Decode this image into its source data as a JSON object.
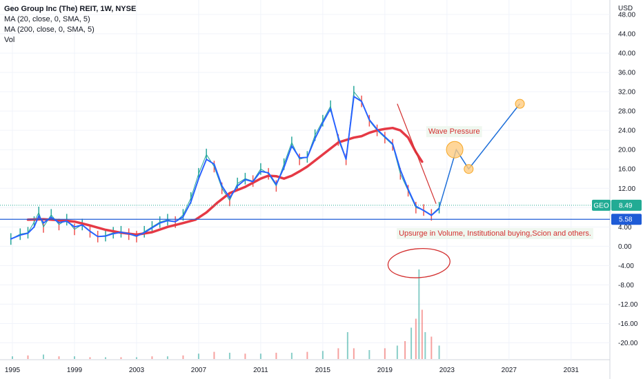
{
  "legend": {
    "title": "Geo Group Inc (The) REIT, 1W, NYSE",
    "lines": [
      "MA (20, close, 0, SMA, 5)",
      "MA (200, close, 0, SMA, 5)",
      "Vol"
    ]
  },
  "chart_data": {
    "type": "line",
    "currency_label": "USD",
    "x_ticks": [
      "1995",
      "1999",
      "2003",
      "2007",
      "2011",
      "2015",
      "2019",
      "2023",
      "2027",
      "2031"
    ],
    "x_tick_values": [
      1995,
      1999,
      2003,
      2007,
      2011,
      2015,
      2019,
      2023,
      2027,
      2031
    ],
    "y_ticks": [
      "48.00",
      "44.00",
      "40.00",
      "36.00",
      "32.00",
      "28.00",
      "24.00",
      "20.00",
      "16.00",
      "12.00",
      "8.00",
      "4.00",
      "0.00",
      "-4.00",
      "-8.00",
      "-12.00",
      "-16.00",
      "-20.00"
    ],
    "y_tick_values": [
      48,
      44,
      40,
      36,
      32,
      28,
      24,
      20,
      16,
      12,
      8,
      4,
      0,
      -4,
      -8,
      -12,
      -16,
      -20
    ],
    "xlim": [
      1994.2,
      2033.5
    ],
    "ylim": [
      -23.5,
      51
    ],
    "grid": true,
    "colors": {
      "price": "#26a69a",
      "price_down": "#ef5350",
      "ma20": "#2962ff",
      "ma200": "#e53945",
      "projection": "#1e6fd9",
      "support": "#1e5bd6",
      "annotation": "#d32f2f",
      "circle_fill": "#ffcc80",
      "circle_stroke": "#f5a623",
      "geo_badge": "#22ab94",
      "support_badge": "#1e5bd6"
    },
    "series": [
      {
        "role": "price",
        "x": [
          1994.9,
          1995.5,
          1996.0,
          1996.4,
          1996.7,
          1997.0,
          1997.5,
          1998.0,
          1998.5,
          1999.0,
          1999.5,
          2000.0,
          2000.5,
          2001.0,
          2001.5,
          2002.0,
          2002.5,
          2003.0,
          2003.5,
          2004.0,
          2004.5,
          2005.0,
          2005.5,
          2006.0,
          2006.5,
          2007.0,
          2007.5,
          2008.0,
          2008.5,
          2009.0,
          2009.5,
          2010.0,
          2010.5,
          2011.0,
          2011.5,
          2012.0,
          2012.5,
          2013.0,
          2013.5,
          2014.0,
          2014.5,
          2015.0,
          2015.5,
          2016.0,
          2016.5,
          2017.0,
          2017.5,
          2018.0,
          2018.5,
          2019.0,
          2019.5,
          2020.0,
          2020.5,
          2021.0,
          2021.5,
          2022.0,
          2022.5
        ],
        "y": [
          1.5,
          2.5,
          2.8,
          5.0,
          7.0,
          4.0,
          6.5,
          4.5,
          5.5,
          3.5,
          4.5,
          3.0,
          2.0,
          2.2,
          2.8,
          3.0,
          2.5,
          2.0,
          3.0,
          4.0,
          5.0,
          5.5,
          5.0,
          6.5,
          10.0,
          15.0,
          19.0,
          16.5,
          12.0,
          9.5,
          13.0,
          14.0,
          13.5,
          16.0,
          15.0,
          12.5,
          17.0,
          21.5,
          18.0,
          18.5,
          23.0,
          26.0,
          29.0,
          22.0,
          18.0,
          32.0,
          30.0,
          26.0,
          24.0,
          22.5,
          21.0,
          15.0,
          11.5,
          8.0,
          7.5,
          6.5,
          8.0
        ]
      },
      {
        "role": "ma20",
        "x": [
          1994.9,
          1995.5,
          1996.0,
          1996.4,
          1996.7,
          1997.0,
          1997.5,
          1998.0,
          1998.5,
          1999.0,
          1999.5,
          2000.0,
          2000.5,
          2001.0,
          2001.5,
          2002.0,
          2002.5,
          2003.0,
          2003.5,
          2004.0,
          2004.5,
          2005.0,
          2005.5,
          2006.0,
          2006.5,
          2007.0,
          2007.5,
          2008.0,
          2008.5,
          2009.0,
          2009.5,
          2010.0,
          2010.5,
          2011.0,
          2011.5,
          2012.0,
          2012.5,
          2013.0,
          2013.5,
          2014.0,
          2014.5,
          2015.0,
          2015.5,
          2016.0,
          2016.5,
          2017.0,
          2017.5,
          2018.0,
          2018.5,
          2019.0,
          2019.5,
          2020.0,
          2020.5,
          2021.0,
          2021.5,
          2022.0,
          2022.5
        ],
        "y": [
          1.5,
          2.3,
          2.7,
          4.0,
          6.3,
          4.8,
          6.0,
          4.9,
          5.2,
          4.0,
          4.4,
          3.1,
          2.0,
          2.1,
          2.6,
          2.9,
          2.6,
          2.1,
          2.8,
          3.8,
          4.8,
          5.3,
          5.1,
          6.1,
          9.2,
          14.0,
          18.0,
          17.0,
          12.5,
          10.0,
          12.5,
          13.8,
          13.4,
          15.5,
          15.2,
          12.8,
          16.3,
          20.8,
          18.3,
          18.4,
          22.3,
          25.6,
          28.5,
          22.5,
          18.0,
          31.0,
          30.0,
          26.2,
          24.2,
          22.7,
          21.2,
          15.8,
          11.8,
          8.3,
          7.4,
          6.4,
          7.8
        ]
      },
      {
        "role": "ma200",
        "x": [
          1996.0,
          1997.0,
          1998.0,
          1999.0,
          2000.0,
          2001.0,
          2002.0,
          2003.0,
          2004.0,
          2005.0,
          2006.0,
          2006.8,
          2007.5,
          2008.2,
          2009.0,
          2010.0,
          2011.0,
          2011.5,
          2012.0,
          2012.5,
          2013.0,
          2013.5,
          2014.0,
          2015.0,
          2016.0,
          2016.5,
          2017.0,
          2017.5,
          2018.0,
          2018.5,
          2019.0,
          2019.5,
          2020.0,
          2020.5,
          2021.0,
          2021.4
        ],
        "y": [
          5.5,
          5.6,
          5.4,
          5.1,
          4.3,
          3.4,
          2.8,
          2.4,
          2.9,
          4.0,
          4.8,
          5.5,
          7.0,
          9.0,
          11.0,
          12.3,
          14.0,
          14.6,
          14.5,
          14.0,
          14.6,
          15.5,
          16.5,
          19.0,
          21.5,
          22.0,
          22.5,
          22.8,
          23.5,
          24.0,
          24.3,
          24.5,
          24.0,
          22.5,
          19.5,
          17.5
        ]
      }
    ],
    "volume": {
      "x": [
        1995.0,
        1996.0,
        1997.0,
        1998.0,
        1999.0,
        2000.0,
        2001.0,
        2002.0,
        2003.0,
        2004.0,
        2005.0,
        2006.0,
        2007.0,
        2008.0,
        2009.0,
        2010.0,
        2011.0,
        2012.0,
        2013.0,
        2014.0,
        2015.0,
        2016.0,
        2016.6,
        2017.0,
        2018.0,
        2019.0,
        2019.8,
        2020.3,
        2020.7,
        2021.0,
        2021.2,
        2021.4,
        2021.6,
        2022.0,
        2022.5
      ],
      "values": [
        0.03,
        0.04,
        0.05,
        0.03,
        0.03,
        0.02,
        0.02,
        0.02,
        0.02,
        0.03,
        0.03,
        0.04,
        0.06,
        0.08,
        0.07,
        0.06,
        0.06,
        0.07,
        0.07,
        0.08,
        0.09,
        0.12,
        0.3,
        0.12,
        0.1,
        0.12,
        0.15,
        0.2,
        0.35,
        0.45,
        1.0,
        0.55,
        0.3,
        0.25,
        0.15
      ]
    },
    "support_level": {
      "value": 5.58,
      "label": "5.58"
    },
    "last_price": {
      "symbol": "GEO",
      "value": 8.49,
      "label": "8.49"
    },
    "projection": {
      "x": [
        2022.5,
        2023.6,
        2024.4,
        2027.7
      ],
      "y": [
        8.0,
        20.0,
        16.0,
        29.5
      ]
    },
    "wave_pressure_line": {
      "x": [
        2019.8,
        2022.3
      ],
      "y": [
        29.5,
        8.8
      ]
    },
    "annotations": [
      {
        "text": "Wave Pressure",
        "x": 2021.8,
        "y": 23.3
      },
      {
        "text": "Upsurge in Volume, Institutional buying,Scion and others.",
        "x": 2019.9,
        "y": 2.2
      }
    ],
    "markers": [
      {
        "x": 2023.5,
        "y": 20.0,
        "size": "large"
      },
      {
        "x": 2024.4,
        "y": 16.0,
        "size": "small"
      },
      {
        "x": 2027.7,
        "y": 29.5,
        "size": "small"
      }
    ],
    "volume_circle": {
      "x": 2021.2,
      "y": -3.5
    }
  }
}
